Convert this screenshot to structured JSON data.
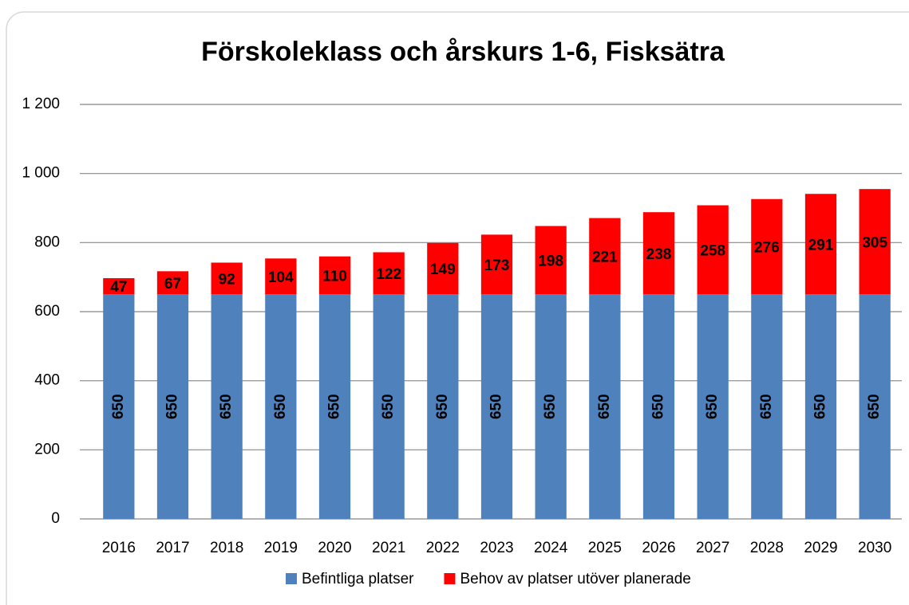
{
  "chart_data": {
    "type": "stacked-bar",
    "title": "Förskoleklass och årskurs 1-6,  Fisksätra",
    "categories": [
      "2016",
      "2017",
      "2018",
      "2019",
      "2020",
      "2021",
      "2022",
      "2023",
      "2024",
      "2025",
      "2026",
      "2027",
      "2028",
      "2029",
      "2030"
    ],
    "series": [
      {
        "name": "Befintliga platser",
        "color": "#4f81bd",
        "values": [
          650,
          650,
          650,
          650,
          650,
          650,
          650,
          650,
          650,
          650,
          650,
          650,
          650,
          650,
          650
        ]
      },
      {
        "name": "Behov av platser utöver planerade",
        "color": "#ff0000",
        "values": [
          47,
          67,
          92,
          104,
          110,
          122,
          149,
          173,
          198,
          221,
          238,
          258,
          276,
          291,
          305
        ]
      }
    ],
    "ylim": [
      0,
      1200
    ],
    "yticks": [
      0,
      200,
      400,
      600,
      800,
      {
        "value": 1000,
        "label": "1 000"
      },
      {
        "value": 1200,
        "label": "1 200"
      }
    ],
    "grid": true,
    "legend": "bottom"
  }
}
